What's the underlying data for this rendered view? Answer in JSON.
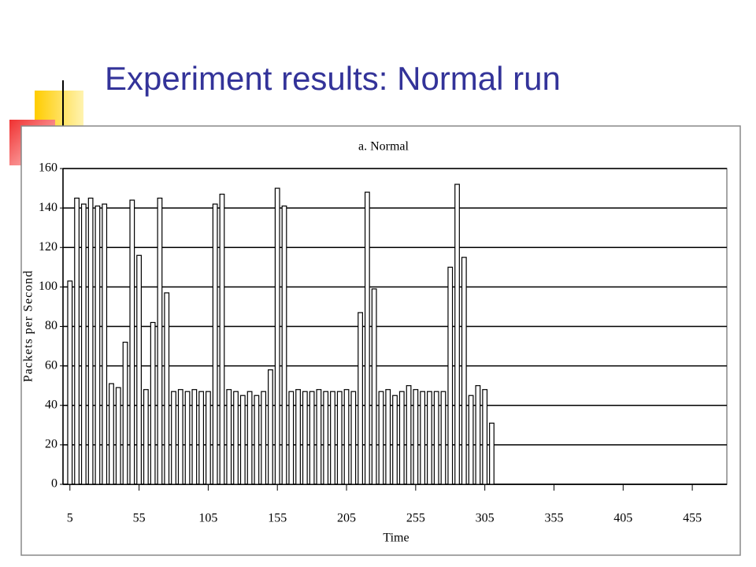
{
  "slide_title": "Experiment results: Normal run",
  "chart_data": {
    "type": "bar",
    "title": "a. Normal",
    "xlabel": "Time",
    "ylabel": "Packets per Second",
    "x": [
      5,
      10,
      15,
      20,
      25,
      30,
      35,
      40,
      45,
      50,
      55,
      60,
      65,
      70,
      75,
      80,
      85,
      90,
      95,
      100,
      105,
      110,
      115,
      120,
      125,
      130,
      135,
      140,
      145,
      150,
      155,
      160,
      165,
      170,
      175,
      180,
      185,
      190,
      195,
      200,
      205,
      210,
      215,
      220,
      225,
      230,
      235,
      240,
      245,
      250,
      255,
      260,
      265,
      270,
      275,
      280,
      285,
      290,
      295,
      300,
      305,
      310
    ],
    "values": [
      103,
      145,
      142,
      145,
      141,
      142,
      51,
      49,
      72,
      144,
      116,
      48,
      82,
      145,
      97,
      47,
      48,
      47,
      48,
      47,
      47,
      142,
      147,
      48,
      47,
      45,
      47,
      45,
      47,
      58,
      150,
      141,
      47,
      48,
      47,
      47,
      48,
      47,
      47,
      47,
      48,
      47,
      87,
      148,
      99,
      47,
      48,
      45,
      47,
      50,
      48,
      47,
      47,
      47,
      47,
      110,
      152,
      115,
      45,
      50,
      48,
      31
    ],
    "color": "#ffffff",
    "xlim": [
      0,
      480
    ],
    "xticks": [
      5,
      55,
      105,
      155,
      205,
      255,
      305,
      355,
      405,
      455
    ],
    "ylim": [
      0,
      160
    ],
    "yticks": [
      0,
      20,
      40,
      60,
      80,
      100,
      120,
      140,
      160
    ],
    "grid": true
  }
}
